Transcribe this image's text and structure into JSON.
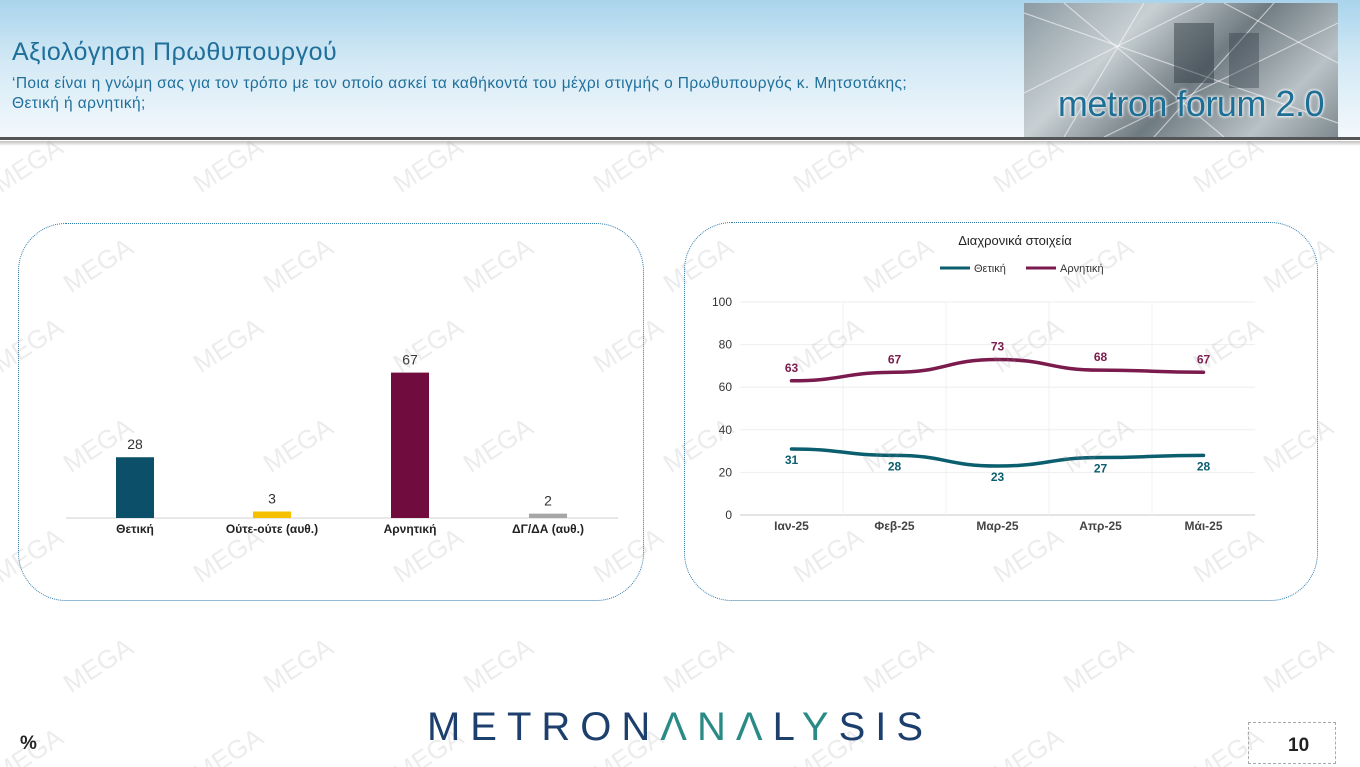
{
  "header": {
    "title": "Αξιολόγηση Πρωθυπουργού",
    "question": "‘Ποια είναι η γνώμη σας για τον τρόπο με τον οποίο ασκεί τα καθήκοντά του μέχρι στιγμής ο Πρωθυπουργός κ. Μητσοτάκης; Θετική ή αρνητική;",
    "logo_text": "metron forum 2.0"
  },
  "chart_data": [
    {
      "type": "bar",
      "categories": [
        "Θετική",
        "Ούτε-ούτε (αυθ.)",
        "Αρνητική",
        "ΔΓ/ΔΑ (αυθ.)"
      ],
      "values": [
        28,
        3,
        67,
        2
      ],
      "colors": [
        "#0b5068",
        "#f5c000",
        "#700d3e",
        "#a6a6a6"
      ]
    },
    {
      "type": "line",
      "title": "Διαχρονικά στοιχεία",
      "x": [
        "Ιαν-25",
        "Φεβ-25",
        "Μαρ-25",
        "Απρ-25",
        "Μάι-25"
      ],
      "ylim": [
        0,
        100
      ],
      "yticks": [
        0,
        20,
        40,
        60,
        80,
        100
      ],
      "legend": "top",
      "grid": true,
      "series": [
        {
          "name": "Θετική",
          "values": [
            31,
            28,
            23,
            27,
            28
          ],
          "color": "#0b5e6e"
        },
        {
          "name": "Αρνητική",
          "values": [
            63,
            67,
            73,
            68,
            67
          ],
          "color": "#7b1a4c"
        }
      ]
    }
  ],
  "footer": {
    "brand_part1": "METRON",
    "brand_part2": "ΛNΛ",
    "brand_part3": "L",
    "brand_part4": "Y",
    "brand_part5": "SIS",
    "unit": "%",
    "page_number": "10"
  },
  "watermark": {
    "text": "MEGA",
    "color": "#969696"
  }
}
